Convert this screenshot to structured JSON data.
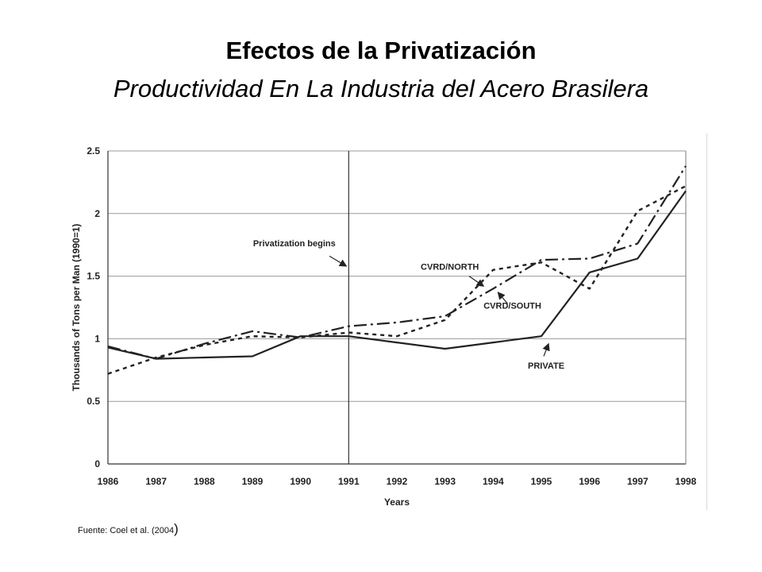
{
  "title": "Efectos de la Privatización",
  "subtitle": "Productividad En La Industria del Acero Brasilera",
  "source": {
    "text": "Fuente: Coel et al.  (2004",
    "close": ")"
  },
  "chart_data": {
    "type": "line",
    "x": [
      1986,
      1987,
      1988,
      1989,
      1990,
      1991,
      1992,
      1993,
      1994,
      1995,
      1996,
      1997,
      1998
    ],
    "xlabel": "Years",
    "ylabel": "Thousands of Tons per Man (1990=1)",
    "ylim": [
      0,
      2.5
    ],
    "yticks": [
      0,
      0.5,
      1,
      1.5,
      2,
      2.5
    ],
    "grid": true,
    "series": [
      {
        "name": "PRIVATE",
        "style": "solid",
        "values": [
          0.93,
          0.84,
          0.85,
          0.86,
          1.02,
          1.02,
          0.97,
          0.92,
          0.97,
          1.02,
          1.53,
          1.64,
          2.18
        ]
      },
      {
        "name": "CVRD/NORTH",
        "style": "dotted",
        "values": [
          0.72,
          0.85,
          0.95,
          1.02,
          1.01,
          1.05,
          1.02,
          1.15,
          1.55,
          1.61,
          1.4,
          2.02,
          2.22
        ]
      },
      {
        "name": "CVRD/SOUTH",
        "style": "dashdot",
        "values": [
          0.94,
          0.84,
          0.96,
          1.06,
          1.01,
          1.1,
          1.13,
          1.18,
          1.4,
          1.63,
          1.64,
          1.76,
          2.38
        ]
      }
    ],
    "annotations": [
      {
        "text": "Privatization begins",
        "points_to": 1991
      },
      {
        "text": "CVRD/NORTH",
        "series": "CVRD/NORTH"
      },
      {
        "text": "CVRD/SOUTH",
        "series": "CVRD/SOUTH"
      },
      {
        "text": "PRIVATE",
        "series": "PRIVATE"
      }
    ],
    "vertical_marker": 1991
  }
}
